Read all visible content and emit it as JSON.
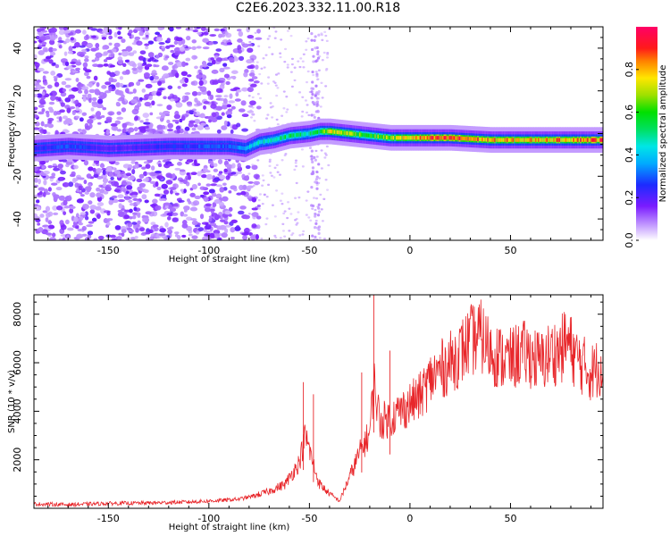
{
  "title": "C2E6.2023.332.11.00.R18",
  "colors": {
    "signal_line": "#e8262a",
    "frame": "#000000"
  },
  "chart_data": [
    {
      "type": "heatmap",
      "xlabel": "Height of straight line (km)",
      "ylabel": "Frequency (Hz)",
      "xlim": [
        -187,
        96
      ],
      "ylim": [
        -50,
        50
      ],
      "x_ticks": [
        -150,
        -100,
        -50,
        0,
        50
      ],
      "y_ticks": [
        -40,
        -20,
        0,
        20,
        40
      ],
      "colorbar": {
        "label": "Normalized spectral amplitude",
        "range": [
          0.0,
          1.0
        ],
        "ticks": [
          0.0,
          0.2,
          0.4,
          0.6,
          0.8
        ],
        "colormap": "rainbow"
      },
      "ridge": {
        "x": [
          -187,
          -170,
          -150,
          -120,
          -100,
          -90,
          -82,
          -75,
          -68,
          -60,
          -50,
          -45,
          -40,
          -30,
          -20,
          -10,
          0,
          10,
          20,
          40,
          60,
          80,
          96
        ],
        "freq_hz": [
          -7,
          -6,
          -7,
          -6,
          -6,
          -6,
          -7,
          -4,
          -3,
          -1,
          0,
          1,
          1,
          0,
          -1,
          -2,
          -2,
          -2,
          -2,
          -3,
          -3,
          -3,
          -3
        ],
        "peak_amplitude": [
          0.25,
          0.3,
          0.2,
          0.25,
          0.3,
          0.3,
          0.4,
          0.45,
          0.5,
          0.55,
          0.5,
          0.6,
          0.75,
          0.7,
          0.6,
          0.7,
          0.8,
          0.85,
          0.9,
          0.8,
          0.8,
          0.85,
          0.9
        ]
      },
      "noise_region_xlim": [
        -187,
        -80
      ]
    },
    {
      "type": "line",
      "xlabel": "Height of straight line (km)",
      "ylabel": "SNR (10 * v/v)",
      "xlim": [
        -187,
        96
      ],
      "ylim": [
        0,
        8800
      ],
      "x_ticks": [
        -150,
        -100,
        -50,
        0,
        50
      ],
      "y_ticks": [
        2000,
        4000,
        6000,
        8000
      ],
      "series": [
        {
          "x": [
            -187,
            -170,
            -150,
            -130,
            -110,
            -95,
            -85,
            -78,
            -70,
            -62,
            -55,
            -52,
            -50,
            -47,
            -45,
            -40,
            -35,
            -32,
            -28,
            -25,
            -20,
            -18,
            -15,
            -10,
            -5,
            0,
            5,
            10,
            15,
            20,
            25,
            30,
            35,
            40,
            45,
            50,
            55,
            60,
            65,
            70,
            75,
            78,
            82,
            86,
            90,
            94,
            96
          ],
          "y": [
            180,
            150,
            200,
            220,
            260,
            320,
            380,
            500,
            700,
            1000,
            1900,
            3000,
            2400,
            1500,
            1000,
            600,
            300,
            900,
            1700,
            2300,
            3100,
            5200,
            3600,
            3700,
            4000,
            4300,
            4600,
            5300,
            5700,
            6000,
            6400,
            6900,
            7100,
            6500,
            6200,
            6100,
            6400,
            6300,
            6000,
            6400,
            6500,
            6900,
            6300,
            5900,
            5600,
            5800,
            6200
          ]
        }
      ]
    }
  ]
}
